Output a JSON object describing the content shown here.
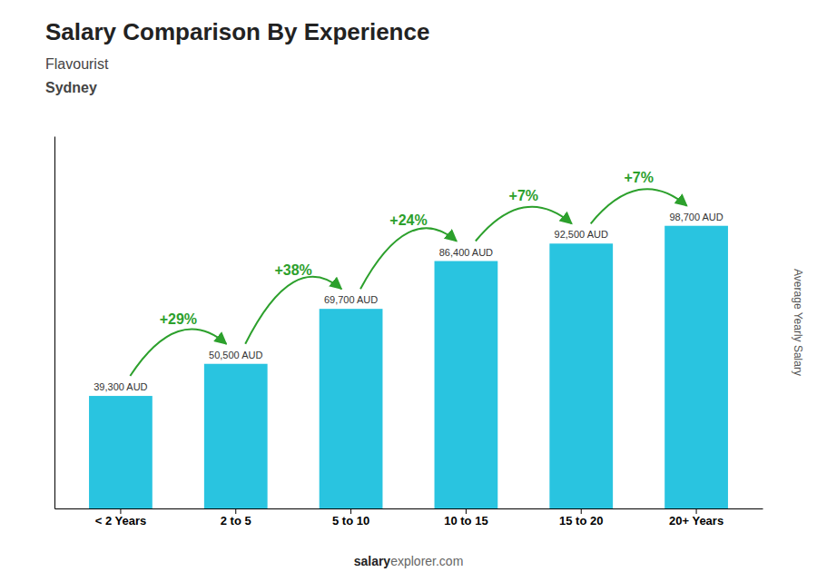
{
  "chart_data": {
    "type": "bar",
    "title": "Salary Comparison By Experience",
    "subtitle": [
      "Flavourist",
      "Sydney"
    ],
    "ylabel": "Average Yearly Salary",
    "footer": [
      "salary",
      "explorer.com"
    ],
    "categories": [
      "< 2 Years",
      "2 to 5",
      "5 to 10",
      "10 to 15",
      "15 to 20",
      "20+ Years"
    ],
    "values": [
      39300,
      50500,
      69700,
      86400,
      92500,
      98700
    ],
    "value_labels": [
      "39,300 AUD",
      "50,500 AUD",
      "69,700 AUD",
      "86,400 AUD",
      "92,500 AUD",
      "98,700 AUD"
    ],
    "data_labels": true,
    "annotations": [
      "+29%",
      "+38%",
      "+24%",
      "+7%",
      "+7%"
    ],
    "color": "#29c4e0",
    "ylim": [
      0,
      130000
    ],
    "tick_labels": "x"
  }
}
